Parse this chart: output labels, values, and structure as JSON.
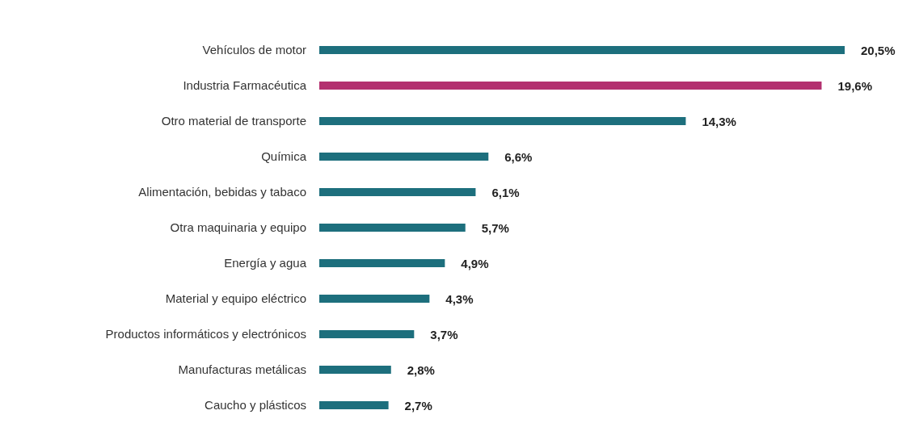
{
  "chart_data": {
    "type": "bar",
    "orientation": "horizontal",
    "categories": [
      "Vehículos de motor",
      "Industria Farmacéutica",
      "Otro material de transporte",
      "Química",
      "Alimentación, bebidas y tabaco",
      "Otra maquinaria y equipo",
      "Energía y agua",
      "Material y equipo eléctrico",
      "Productos informáticos y electrónicos",
      "Manufacturas metálicas",
      "Caucho y plásticos"
    ],
    "values": [
      20.5,
      19.6,
      14.3,
      6.6,
      6.1,
      5.7,
      4.9,
      4.3,
      3.7,
      2.8,
      2.7
    ],
    "colors": [
      "#1d6f7d",
      "#b3306f",
      "#1d6f7d",
      "#1d6f7d",
      "#1d6f7d",
      "#1d6f7d",
      "#1d6f7d",
      "#1d6f7d",
      "#1d6f7d",
      "#1d6f7d",
      "#1d6f7d"
    ],
    "value_labels": [
      "20,5%",
      "19,6%",
      "14,3%",
      "6,6%",
      "6,1%",
      "5,7%",
      "4,9%",
      "4,3%",
      "3,7%",
      "2,8%",
      "2,7%"
    ]
  }
}
